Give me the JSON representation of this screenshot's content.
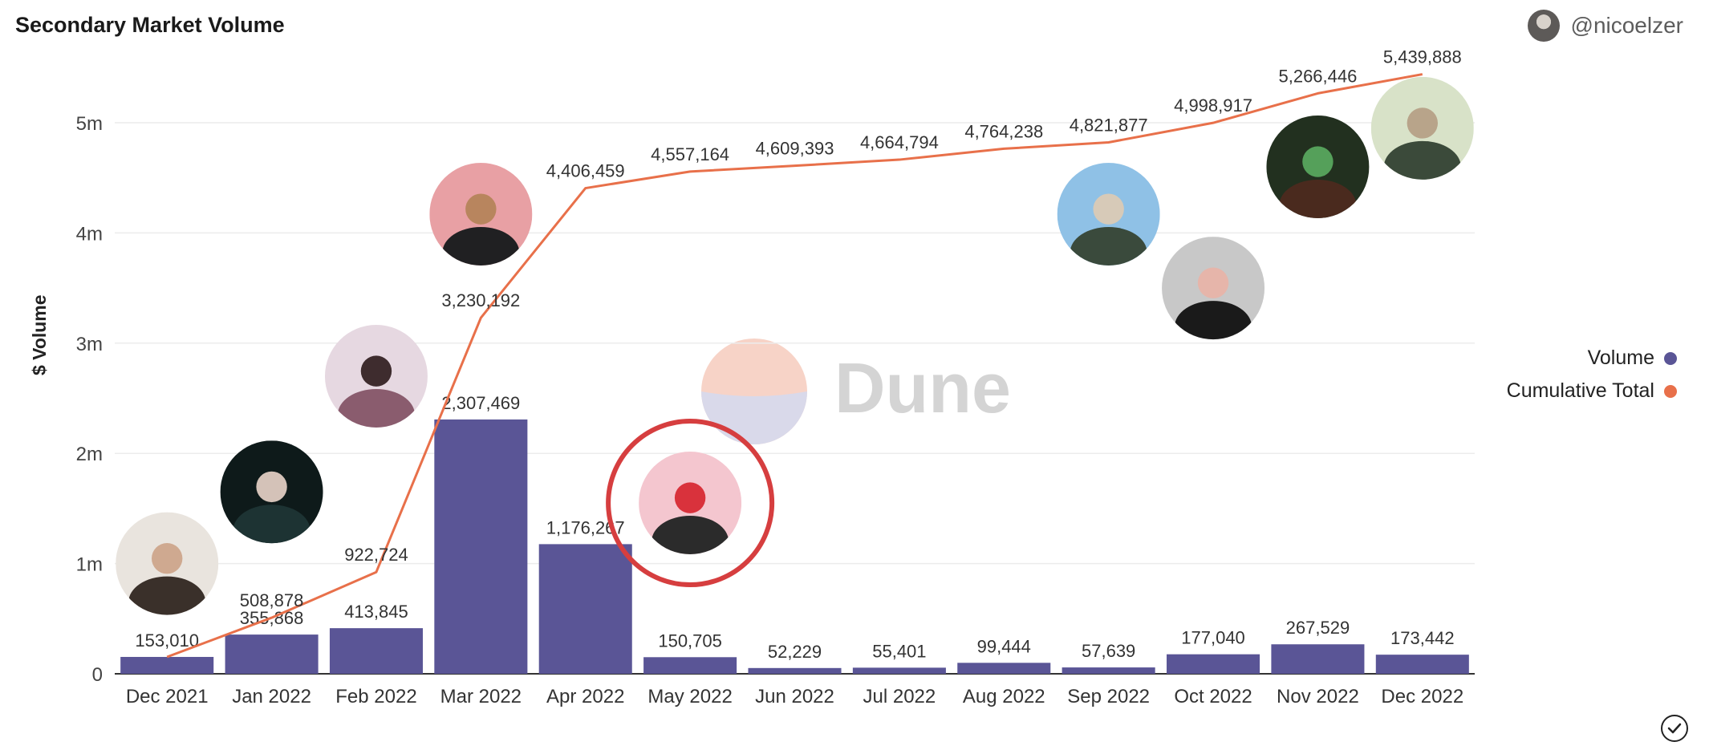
{
  "header": {
    "title": "Secondary Market Volume",
    "author_handle": "@nicoelzer"
  },
  "legend": [
    {
      "label": "Volume",
      "color": "#5a5596"
    },
    {
      "label": "Cumulative Total",
      "color": "#e8704a"
    }
  ],
  "watermark": "Dune",
  "chart_data": {
    "type": "bar",
    "title": "Secondary Market Volume",
    "ylabel": "$ Volume",
    "xlabel": "",
    "categories": [
      "Dec 2021",
      "Jan 2022",
      "Feb 2022",
      "Mar 2022",
      "Apr 2022",
      "May 2022",
      "Jun 2022",
      "Jul 2022",
      "Aug 2022",
      "Sep 2022",
      "Oct 2022",
      "Nov 2022",
      "Dec 2022"
    ],
    "ylim": [
      0,
      5500000
    ],
    "yticks": [
      {
        "value": 0,
        "label": "0"
      },
      {
        "value": 1000000,
        "label": "1m"
      },
      {
        "value": 2000000,
        "label": "2m"
      },
      {
        "value": 3000000,
        "label": "3m"
      },
      {
        "value": 4000000,
        "label": "4m"
      },
      {
        "value": 5000000,
        "label": "5m"
      }
    ],
    "grid": true,
    "legend_position": "right",
    "series": [
      {
        "name": "Volume",
        "type": "bar",
        "color": "#5a5596",
        "values": [
          153010,
          355868,
          413845,
          2307469,
          1176267,
          150705,
          52229,
          55401,
          99444,
          57639,
          177040,
          267529,
          173442
        ],
        "labels": [
          "153,010",
          "355,868",
          "413,845",
          "2,307,469",
          "1,176,267",
          "150,705",
          "52,229",
          "55,401",
          "99,444",
          "57,639",
          "177,040",
          "267,529",
          "173,442"
        ]
      },
      {
        "name": "Cumulative Total",
        "type": "line",
        "color": "#e8704a",
        "values": [
          153010,
          508878,
          922724,
          3230192,
          4406459,
          4557164,
          4609393,
          4664794,
          4764238,
          4821877,
          4998917,
          5266446,
          5439888
        ],
        "labels": [
          "153,010",
          "508,878",
          "922,724",
          "3,230,192",
          "4,406,459",
          "4,557,164",
          "4,609,393",
          "4,664,794",
          "4,764,238",
          "4,821,877",
          "4,998,917",
          "5,266,446",
          "5,439,888"
        ]
      }
    ],
    "artist_photos": [
      {
        "category": "Dec 2021",
        "value": 1000000,
        "highlighted": false,
        "palette": [
          "#e9e4de",
          "#3a302a",
          "#cfa990"
        ]
      },
      {
        "category": "Jan 2022",
        "value": 1650000,
        "highlighted": false,
        "palette": [
          "#0e1a1a",
          "#1d3333",
          "#d4c2b8"
        ]
      },
      {
        "category": "Feb 2022",
        "value": 2700000,
        "highlighted": false,
        "palette": [
          "#e6d8e1",
          "#8a5c6e",
          "#3e2c2e"
        ]
      },
      {
        "category": "Mar 2022",
        "value": 4170000,
        "highlighted": false,
        "palette": [
          "#e8a0a4",
          "#202022",
          "#b8855e"
        ]
      },
      {
        "category": "May 2022",
        "value": 1550000,
        "highlighted": true,
        "palette": [
          "#f4c6cf",
          "#2b2b2b",
          "#d9323c"
        ]
      },
      {
        "category": "Sep 2022",
        "value": 4170000,
        "highlighted": false,
        "palette": [
          "#8fc1e6",
          "#3a4a3c",
          "#d7cab8"
        ]
      },
      {
        "category": "Oct 2022",
        "value": 3500000,
        "highlighted": false,
        "palette": [
          "#c8c8c8",
          "#1a1a1a",
          "#e6b5aa"
        ]
      },
      {
        "category": "Nov 2022",
        "value": 4600000,
        "highlighted": false,
        "palette": [
          "#22301f",
          "#4a2a1e",
          "#55a05a"
        ]
      },
      {
        "category": "Dec 2022",
        "value": 4950000,
        "highlighted": false,
        "palette": [
          "#d8e2c8",
          "#3b4a3a",
          "#b8a48a"
        ]
      }
    ]
  }
}
